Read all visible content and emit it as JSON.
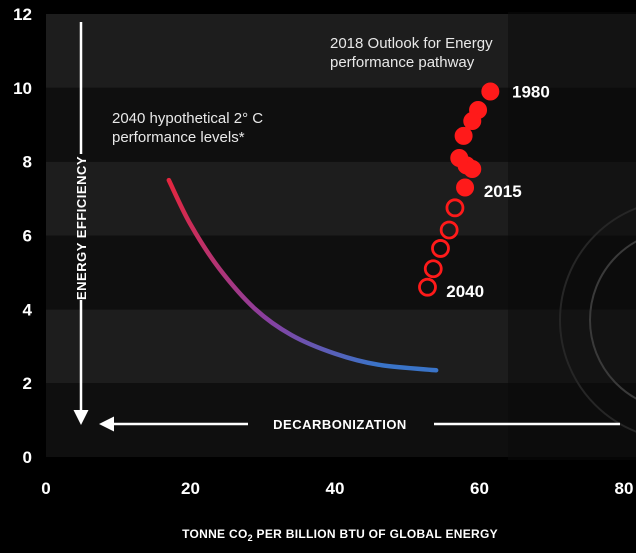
{
  "chart_data": {
    "type": "scatter",
    "xlim": [
      0,
      80
    ],
    "ylim": [
      0,
      12
    ],
    "x_ticks": [
      "0",
      "20",
      "40",
      "60",
      "80"
    ],
    "y_ticks": [
      "0",
      "2",
      "4",
      "6",
      "8",
      "10",
      "12"
    ],
    "xlabel_main": "TONNE CO",
    "xlabel_sub": "2",
    "xlabel_rest": " PER BILLION BTU OF GLOBAL ENERGY",
    "ylabel": "ENERGY EFFICIENCY",
    "horizontal_arrow_label": "DECARBONIZATION",
    "grid": "alternating horizontal bands",
    "series": [
      {
        "marker": "filled-circle",
        "color": "#ff1a1a",
        "points": [
          {
            "x": 61.5,
            "y": 9.9
          },
          {
            "x": 59.8,
            "y": 9.4
          },
          {
            "x": 59.0,
            "y": 9.1
          },
          {
            "x": 57.8,
            "y": 8.7
          },
          {
            "x": 57.2,
            "y": 8.1
          },
          {
            "x": 58.2,
            "y": 7.9
          },
          {
            "x": 59.0,
            "y": 7.8
          },
          {
            "x": 58.0,
            "y": 7.3
          }
        ]
      },
      {
        "marker": "open-circle",
        "color": "#ff1a1a",
        "points": [
          {
            "x": 56.6,
            "y": 6.75
          },
          {
            "x": 55.8,
            "y": 6.15
          },
          {
            "x": 54.6,
            "y": 5.65
          },
          {
            "x": 53.6,
            "y": 5.1
          },
          {
            "x": 52.8,
            "y": 4.6
          }
        ]
      }
    ],
    "curve": {
      "color_start": "#e3263f",
      "color_mid": "#8a3fa0",
      "color_end": "#3a74c8",
      "points": [
        {
          "x": 17.0,
          "y": 7.5
        },
        {
          "x": 20.0,
          "y": 6.3
        },
        {
          "x": 24.0,
          "y": 5.1
        },
        {
          "x": 29.0,
          "y": 4.0
        },
        {
          "x": 34.0,
          "y": 3.3
        },
        {
          "x": 40.0,
          "y": 2.8
        },
        {
          "x": 46.0,
          "y": 2.5
        },
        {
          "x": 54.0,
          "y": 2.35
        }
      ]
    },
    "point_labels": [
      {
        "text": "1980",
        "x": 64.5,
        "y": 9.9
      },
      {
        "text": "2015",
        "x": 60.6,
        "y": 7.2
      },
      {
        "text": "2040",
        "x": 55.4,
        "y": 4.5
      }
    ],
    "annotations": {
      "outlook_line1": "2018 Outlook for Energy",
      "outlook_line2": "performance pathway",
      "hypo_line1": "2040 hypothetical 2° C",
      "hypo_line2": "performance levels*"
    }
  }
}
